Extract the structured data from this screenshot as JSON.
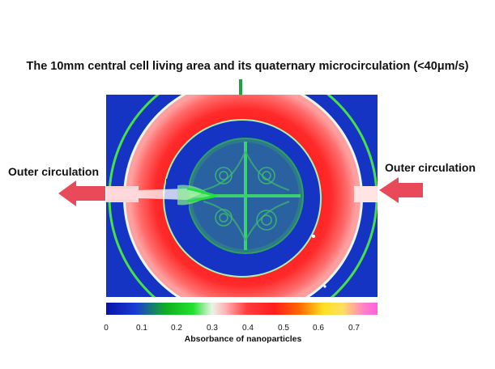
{
  "title": "The 10mm central cell living area and its quaternary microcirculation (<40μm/s)",
  "labels": {
    "outer_left": "Outer circulation",
    "outer_right": "Outer circulation"
  },
  "colorbar": {
    "ticks": [
      "0",
      "0.1",
      "0.2",
      "0.3",
      "0.4",
      "0.5",
      "0.6",
      "0.7"
    ],
    "label": "Absorbance of nanoparticles"
  },
  "colors": {
    "arrow_red": "#e84a5a",
    "arrow_green": "#20a040"
  }
}
